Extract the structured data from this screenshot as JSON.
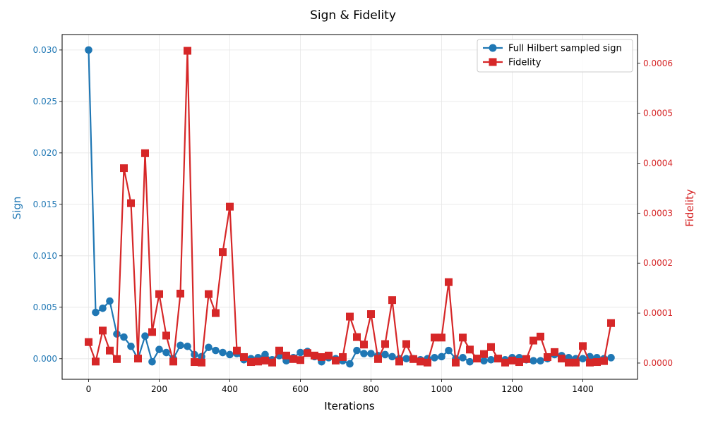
{
  "chart_data": {
    "type": "line",
    "title": "Sign & Fidelity",
    "xlabel": "Iterations",
    "ylabel_left": "Sign",
    "ylabel_right": "Fidelity",
    "xlim": [
      -75,
      1555
    ],
    "ylim_left": [
      -0.002,
      0.0315
    ],
    "ylim_right": [
      -3.25e-05,
      0.0006575
    ],
    "x_ticks": [
      0,
      200,
      400,
      600,
      800,
      1000,
      1200,
      1400
    ],
    "y_left_ticks": [
      0.0,
      0.005,
      0.01,
      0.015,
      0.02,
      0.025,
      0.03
    ],
    "y_left_tick_labels": [
      "0.000",
      "0.005",
      "0.010",
      "0.015",
      "0.020",
      "0.025",
      "0.030"
    ],
    "y_right_ticks": [
      0.0,
      0.0001,
      0.0002,
      0.0003,
      0.0004,
      0.0005,
      0.0006
    ],
    "y_right_tick_labels": [
      "0.0000",
      "0.0001",
      "0.0002",
      "0.0003",
      "0.0004",
      "0.0005",
      "0.0006"
    ],
    "grid": true,
    "legend_position": "top-right",
    "x": [
      0,
      20,
      40,
      60,
      80,
      100,
      120,
      140,
      160,
      180,
      200,
      220,
      240,
      260,
      280,
      300,
      320,
      340,
      360,
      380,
      400,
      420,
      440,
      460,
      480,
      500,
      520,
      540,
      560,
      580,
      600,
      620,
      640,
      660,
      680,
      700,
      720,
      740,
      760,
      780,
      800,
      820,
      840,
      860,
      880,
      900,
      920,
      940,
      960,
      980,
      1000,
      1020,
      1040,
      1060,
      1080,
      1100,
      1120,
      1140,
      1160,
      1180,
      1200,
      1220,
      1240,
      1260,
      1280,
      1300,
      1320,
      1340,
      1360,
      1380,
      1400,
      1420,
      1440,
      1460,
      1480
    ],
    "series": [
      {
        "name": "Full Hilbert sampled sign",
        "axis": "left",
        "color": "#1f77b4",
        "marker": "circle",
        "values": [
          0.03,
          0.0045,
          0.0049,
          0.0056,
          0.0024,
          0.0021,
          0.0012,
          0.0,
          0.0022,
          -0.0003,
          0.0009,
          0.0006,
          0.0,
          0.0013,
          0.0012,
          0.0004,
          0.0002,
          0.0011,
          0.0008,
          0.0006,
          0.0004,
          0.0005,
          -0.0001,
          0.0,
          0.0001,
          0.0004,
          -0.0001,
          0.0003,
          -0.0002,
          0.0001,
          0.0006,
          0.0007,
          0.0002,
          -0.0003,
          0.0001,
          0.0,
          -0.0002,
          -0.0005,
          0.0008,
          0.0005,
          0.0005,
          0.0003,
          0.0004,
          0.0002,
          0.0,
          0.0,
          0.0,
          -0.0001,
          0.0,
          0.0001,
          0.0002,
          0.0008,
          0.0,
          0.0001,
          -0.0003,
          0.0,
          -0.0002,
          -0.0001,
          0.0,
          -0.0001,
          0.0001,
          0.0001,
          -0.0001,
          -0.0002,
          -0.0002,
          0.0,
          0.0004,
          0.0003,
          0.0001,
          0.0,
          0.0,
          0.0002,
          0.0001,
          0.0,
          0.0001
        ]
      },
      {
        "name": "Fidelity",
        "axis": "right",
        "color": "#d62728",
        "marker": "square",
        "values": [
          4.2e-05,
          3e-06,
          6.5e-05,
          2.5e-05,
          8e-06,
          0.00039,
          0.00032,
          9e-06,
          0.00042,
          6.2e-05,
          0.000138,
          5.5e-05,
          3e-06,
          0.000139,
          0.000625,
          2e-06,
          1e-06,
          0.000138,
          0.0001,
          0.000222,
          0.000313,
          2.5e-05,
          1.2e-05,
          2e-06,
          3e-06,
          5e-06,
          1e-06,
          2.5e-05,
          1.5e-05,
          8e-06,
          6e-06,
          2e-05,
          1.5e-05,
          1.2e-05,
          1.5e-05,
          5e-06,
          1.2e-05,
          9.3e-05,
          5.2e-05,
          3.7e-05,
          9.8e-05,
          8e-06,
          3.8e-05,
          0.000126,
          3e-06,
          3.8e-05,
          8e-06,
          3e-06,
          1e-06,
          5.1e-05,
          5.1e-05,
          0.000162,
          1e-06,
          5.1e-05,
          2.7e-05,
          9e-06,
          1.8e-05,
          3.2e-05,
          9e-06,
          1e-06,
          5e-06,
          2e-06,
          8e-06,
          4.5e-05,
          5.3e-05,
          1.2e-05,
          2.2e-05,
          9e-06,
          1e-06,
          1e-06,
          3.4e-05,
          1e-06,
          2e-06,
          4e-06,
          8e-05
        ]
      }
    ]
  }
}
